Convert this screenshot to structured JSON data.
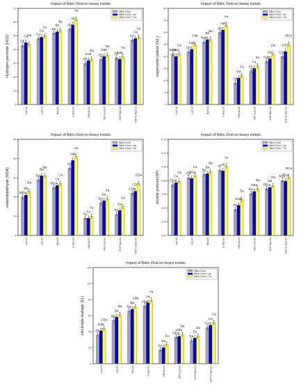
{
  "colors": {
    "s0": "#a6a6a6",
    "s1": "#0000ee",
    "s2": "#ffff33"
  },
  "legend_names": [
    "Nitric Oxid",
    "Nitric Oxid  + pb",
    "Nitric Oxid  + Cd"
  ],
  "chart_data": [
    {
      "type": "bar",
      "title": "Impact of Nitric Oxid on heavy metals",
      "ylabel": "Hydrogen peroxide (HO2)",
      "ylim": [
        0,
        70
      ],
      "yticks": [
        0,
        10,
        20,
        30,
        40,
        50,
        60,
        70
      ],
      "grid": false,
      "legend": "top-right",
      "categories": [
        "Cpb.Cd",
        "Lpb.Cd",
        "Hpb.Cd",
        "L+Hpb.Cd",
        "SNP/pb.Cd",
        "SNP+Lpb.Cd",
        "SNP+Hpb.Cd",
        "SNP+L+Hpb.Cd"
      ],
      "series": [
        {
          "name": "Nitric Oxid",
          "values": [
            43,
            48,
            52,
            55,
            30,
            33,
            34,
            47
          ],
          "labels": [
            "Db",
            "Ca",
            "Ba",
            "Ab",
            "Gb",
            "Eb",
            "Fb",
            "Ca"
          ]
        },
        {
          "name": "Nitric Oxid  + pb",
          "values": [
            45,
            49,
            53,
            58,
            32,
            35,
            33,
            48
          ],
          "labels": [
            "Ca",
            "Ca",
            "Ba",
            "Ab",
            "Eab",
            "Dab",
            "Eab",
            "Ca"
          ]
        },
        {
          "name": "Nitric Oxid  + Cd",
          "values": [
            44,
            50,
            54,
            62,
            33,
            36,
            35,
            49
          ],
          "labels": [
            "Da",
            "Ca",
            "Ba",
            "Aa",
            "Ea",
            "Da",
            "Fa",
            "Ca"
          ]
        }
      ]
    },
    {
      "type": "bar",
      "title": "Impact of Nitric Oxid on heavy metals",
      "ylabel": "superoxide radical (O2-)",
      "ylim": [
        0,
        40
      ],
      "yticks": [
        0,
        5,
        10,
        15,
        20,
        25,
        30,
        35,
        40
      ],
      "grid": false,
      "legend": "top-right",
      "categories": [
        "Cpb.Cd",
        "Lpb.Cd",
        "Hpb.Cd",
        "L+Hpb.Cd",
        "SNP/pb.Cd",
        "SNP+Lpb.Cd",
        "SNP+Hpb.Cd",
        "SNP+L+Hpb.Cd"
      ],
      "series": [
        {
          "name": "Nitric Oxid",
          "values": [
            21,
            22,
            26,
            30,
            9,
            14,
            18,
            20
          ],
          "labels": [
            "DEa",
            "Cb",
            "Bab",
            "Ab",
            "Gb",
            "Fa",
            "Eab",
            "CDb"
          ]
        },
        {
          "name": "Nitric Oxid  + pb",
          "values": [
            20,
            23,
            27,
            31,
            11,
            15,
            19,
            22
          ],
          "labels": [
            "DEa",
            "Cab",
            "Ba",
            "Aab",
            "Ga",
            "Fa",
            "Da",
            "CDb"
          ]
        },
        {
          "name": "Nitric Oxid  + Cd",
          "values": [
            21,
            25,
            27,
            33,
            12,
            16,
            21,
            25
          ],
          "labels": [
            "Da",
            "Cab",
            "Ba",
            "Aa",
            "Fa",
            "Ea",
            "Da",
            "BCa"
          ]
        }
      ]
    },
    {
      "type": "bar",
      "title": "Impact of Nitric Oxid on heavy metals",
      "ylabel": "malondialdehyde (MDA)",
      "ylim": [
        0,
        50
      ],
      "yticks": [
        0,
        10,
        20,
        30,
        40,
        50
      ],
      "grid": false,
      "legend": "top-right",
      "categories": [
        "Cpb.Cd",
        "Lpb.Cd",
        "Hpb.Cd",
        "L+Hpb.Cd",
        "SNP/pb.Cd",
        "SNP+Lpb.Cd",
        "SNP+Hpb.Cd",
        "SNP+L+Hpb.Cd"
      ],
      "series": [
        {
          "name": "Nitric Oxid",
          "values": [
            20,
            29,
            25,
            35,
            9,
            17,
            11,
            22
          ],
          "labels": [
            "DEb",
            "Ba",
            "BCa",
            "Ab",
            "Fa",
            "Da",
            "Fb",
            "CDb"
          ]
        },
        {
          "name": "Nitric Oxid  + pb",
          "values": [
            21,
            31,
            26,
            39,
            9,
            18,
            13,
            23
          ],
          "labels": [
            "Db",
            "Ba",
            "Ca",
            "Aab",
            "Fa",
            "Da",
            "Ea",
            "CDb"
          ]
        },
        {
          "name": "Nitric Oxid  + Cd",
          "values": [
            23,
            31,
            27,
            41,
            10,
            19,
            15,
            27
          ],
          "labels": [
            "Da",
            "Ba",
            "Ca",
            "Aa",
            "Fa",
            "Ea",
            "Ea",
            "CDa"
          ]
        }
      ]
    },
    {
      "type": "bar",
      "title": "Impact of Nitric Oxid on heavy metals",
      "ylabel": "soluble proteins(SP)",
      "ylim": [
        0,
        0.14
      ],
      "yticks": [
        0.0,
        0.02,
        0.04,
        0.06,
        0.08,
        0.1,
        0.12,
        0.14
      ],
      "ytick_labels": [
        "0.00",
        "0.02",
        "0.04",
        "0.06",
        "0.08",
        "0.10",
        "0.12",
        "0.14"
      ],
      "grid": false,
      "legend": "top-right",
      "categories": [
        "Cpb.Cd",
        "Lpb.Cd",
        "Hpb.Cd",
        "L+Hpb.Cd",
        "SNP/pb.Cd",
        "SNP+Lpb.Cd",
        "SNP+Hpb.Cd",
        "SNP+L+Hpb.Cd"
      ],
      "series": [
        {
          "name": "Nitric Oxid",
          "values": [
            0.074,
            0.084,
            0.089,
            0.095,
            0.038,
            0.061,
            0.068,
            0.08
          ],
          "labels": [
            "CDa",
            "Ca",
            "Ba",
            "Ab",
            "Fb",
            "Ea",
            "DEa",
            "BCa"
          ]
        },
        {
          "name": "Nitric Oxid  + pb",
          "values": [
            0.077,
            0.083,
            0.09,
            0.094,
            0.044,
            0.064,
            0.07,
            0.079
          ],
          "labels": [
            "Ca",
            "ABCa",
            "Ba",
            "Ab",
            "Eab",
            "DEa",
            "Da",
            "BCa"
          ]
        },
        {
          "name": "Nitric Oxid  + Cd",
          "values": [
            0.079,
            0.087,
            0.093,
            0.101,
            0.052,
            0.068,
            0.072,
            0.085
          ],
          "labels": [
            "Ca",
            "Ca",
            "Ba",
            "Aa",
            "Ea",
            "Da",
            "Da",
            "BCa"
          ]
        }
      ]
    },
    {
      "type": "bar",
      "title": "Impact of Nitric Oxid on heavy metals",
      "ylabel": "electrolyte leakage (EL)",
      "ylim": [
        0,
        120
      ],
      "yticks": [
        0,
        20,
        40,
        60,
        80,
        100,
        120
      ],
      "grid": false,
      "legend": "top-right",
      "categories": [
        "Cpb.Cd",
        "Lpb.Cd",
        "Hpb.Cd",
        "L+Hpb.Cd",
        "SNP/pb.Cd",
        "SNP+Lpb.Cd",
        "SNP+Hpb.Cd",
        "SNP+L+Hpb.Cd"
      ],
      "series": [
        {
          "name": "Nitric Oxid",
          "values": [
            36,
            54,
            66,
            72,
            17,
            33,
            29,
            45
          ],
          "labels": [
            "Db",
            "Bb",
            "Ba",
            "ABa",
            "Fb",
            "DEa",
            "Ea",
            "Ca"
          ]
        },
        {
          "name": "Nitric Oxid  + pb",
          "values": [
            41,
            58,
            68,
            76,
            20,
            34,
            32,
            48
          ],
          "labels": [
            "Dab",
            "Ba",
            "Ba",
            "Aa",
            "Ea",
            "DEa",
            "Ea",
            "Ca"
          ]
        },
        {
          "name": "Nitric Oxid  + Cd",
          "values": [
            44,
            61,
            71,
            79,
            24,
            36,
            34,
            51
          ],
          "labels": [
            "CDa",
            "Ba",
            "ABa",
            "Aa",
            "Ea",
            "Da",
            "Ea",
            "Ca"
          ]
        }
      ]
    }
  ]
}
